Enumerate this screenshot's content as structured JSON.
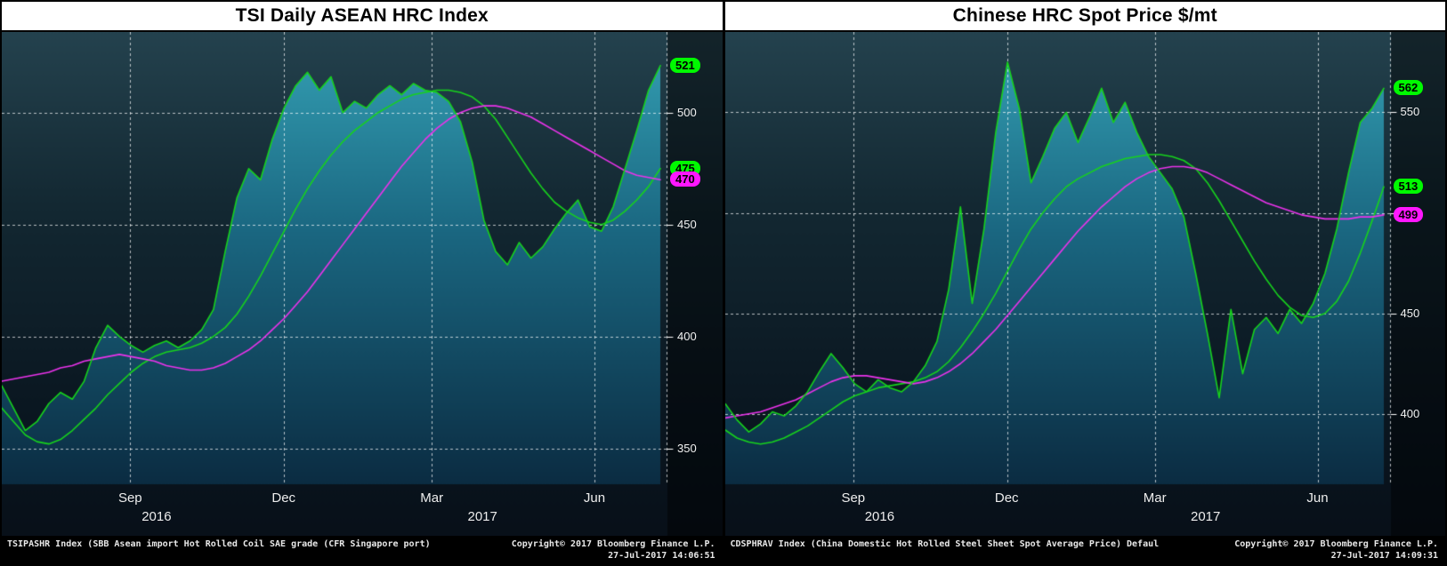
{
  "colors": {
    "header_bg": "#ffffff",
    "header_text": "#000000",
    "plot_bg_top": "#24424e",
    "plot_bg_bottom": "#081019",
    "area_top": "#35a2b6",
    "area_bottom": "#0b2c42",
    "grid": "rgba(255,255,255,0.7)",
    "price_green": "#17d21c",
    "ma_magenta": "#eb32eb",
    "badge_green": "#00f900",
    "badge_magenta": "#ff17ff"
  },
  "chart_data": [
    {
      "type": "line",
      "title": "TSI Daily ASEAN HRC Index",
      "xlabel": "",
      "ylabel": "",
      "grid": true,
      "legend": "none",
      "ylim": [
        334,
        536
      ],
      "y_ticks": [
        350,
        400,
        450,
        500
      ],
      "x_ticks": [
        {
          "label": "Sep",
          "pos": 0.195
        },
        {
          "label": "Dec",
          "pos": 0.428
        },
        {
          "label": "Mar",
          "pos": 0.653
        },
        {
          "label": "Jun",
          "pos": 0.9
        }
      ],
      "year_labels": [
        {
          "label": "2016",
          "pos": 0.235
        },
        {
          "label": "2017",
          "pos": 0.73
        }
      ],
      "series": [
        {
          "name": "price",
          "style": "area-line",
          "color": "#17d21c",
          "badge": "#00f900",
          "last": 521,
          "values": [
            378,
            368,
            358,
            362,
            370,
            375,
            372,
            380,
            395,
            405,
            400,
            396,
            393,
            396,
            398,
            395,
            398,
            403,
            412,
            438,
            462,
            475,
            470,
            488,
            502,
            512,
            518,
            510,
            516,
            500,
            505,
            502,
            508,
            512,
            508,
            513,
            510,
            509,
            505,
            496,
            478,
            452,
            438,
            432,
            442,
            435,
            440,
            448,
            455,
            461,
            449,
            447,
            458,
            475,
            492,
            510,
            521
          ]
        },
        {
          "name": "moving-average-short",
          "style": "line",
          "color": "#17d21c",
          "badge": "#00f900",
          "last": 475,
          "values": [
            368,
            362,
            356,
            353,
            352,
            354,
            358,
            363,
            368,
            374,
            379,
            384,
            388,
            391,
            393,
            394,
            395,
            397,
            400,
            404,
            410,
            418,
            427,
            437,
            447,
            457,
            466,
            474,
            481,
            487,
            492,
            496,
            500,
            503,
            506,
            508,
            509,
            510,
            510,
            509,
            507,
            503,
            497,
            489,
            481,
            473,
            466,
            460,
            456,
            453,
            451,
            450,
            452,
            456,
            461,
            467,
            475
          ]
        },
        {
          "name": "moving-average-long",
          "style": "line",
          "color": "#eb32eb",
          "badge": "#ff17ff",
          "last": 470,
          "values": [
            380,
            381,
            382,
            383,
            384,
            386,
            387,
            389,
            390,
            391,
            392,
            391,
            390,
            389,
            387,
            386,
            385,
            385,
            386,
            388,
            391,
            394,
            398,
            403,
            408,
            414,
            420,
            427,
            434,
            441,
            448,
            455,
            462,
            469,
            476,
            482,
            488,
            493,
            497,
            500,
            502,
            503,
            503,
            502,
            500,
            498,
            495,
            492,
            489,
            486,
            483,
            480,
            477,
            474,
            472,
            471,
            470
          ]
        }
      ],
      "footer_left": "TSIPASHR Index (SBB Asean import Hot Rolled Coil SAE grade (CFR Singapore port)",
      "copyright": "Copyright© 2017 Bloomberg Finance L.P.",
      "timestamp": "27-Jul-2017 14:06:51"
    },
    {
      "type": "line",
      "title": "Chinese HRC Spot Price $/mt",
      "xlabel": "",
      "ylabel": "",
      "grid": true,
      "legend": "none",
      "ylim": [
        365,
        590
      ],
      "y_ticks": [
        400,
        450,
        500,
        550
      ],
      "x_ticks": [
        {
          "label": "Sep",
          "pos": 0.195
        },
        {
          "label": "Dec",
          "pos": 0.428
        },
        {
          "label": "Mar",
          "pos": 0.653
        },
        {
          "label": "Jun",
          "pos": 0.9
        }
      ],
      "year_labels": [
        {
          "label": "2016",
          "pos": 0.235
        },
        {
          "label": "2017",
          "pos": 0.73
        }
      ],
      "series": [
        {
          "name": "price",
          "style": "area-line",
          "color": "#17d21c",
          "badge": "#00f900",
          "last": 562,
          "values": [
            405,
            397,
            391,
            395,
            401,
            399,
            404,
            411,
            421,
            430,
            423,
            415,
            411,
            417,
            413,
            411,
            416,
            424,
            436,
            462,
            503,
            455,
            492,
            540,
            575,
            552,
            515,
            528,
            542,
            550,
            535,
            548,
            562,
            545,
            555,
            540,
            528,
            520,
            512,
            498,
            470,
            440,
            408,
            452,
            420,
            442,
            448,
            440,
            452,
            445,
            455,
            470,
            492,
            520,
            545,
            552,
            562
          ]
        },
        {
          "name": "moving-average-short",
          "style": "line",
          "color": "#17d21c",
          "badge": "#00f900",
          "last": 513,
          "values": [
            392,
            388,
            386,
            385,
            386,
            388,
            391,
            394,
            398,
            402,
            406,
            409,
            411,
            413,
            414,
            415,
            416,
            418,
            421,
            426,
            433,
            441,
            450,
            460,
            471,
            482,
            492,
            500,
            507,
            513,
            517,
            520,
            523,
            525,
            527,
            528,
            529,
            529,
            528,
            526,
            522,
            515,
            506,
            496,
            486,
            476,
            467,
            459,
            453,
            449,
            448,
            450,
            456,
            466,
            480,
            496,
            513
          ]
        },
        {
          "name": "moving-average-long",
          "style": "line",
          "color": "#eb32eb",
          "badge": "#ff17ff",
          "last": 499,
          "values": [
            398,
            399,
            400,
            401,
            403,
            405,
            407,
            410,
            413,
            416,
            418,
            419,
            419,
            418,
            417,
            416,
            415,
            416,
            418,
            421,
            425,
            430,
            436,
            442,
            449,
            456,
            463,
            470,
            477,
            484,
            491,
            497,
            503,
            508,
            513,
            517,
            520,
            522,
            523,
            523,
            522,
            520,
            517,
            514,
            511,
            508,
            505,
            503,
            501,
            499,
            498,
            497,
            497,
            497,
            498,
            498,
            499
          ]
        }
      ],
      "footer_left": "CDSPHRAV Index (China Domestic Hot Rolled Steel Sheet Spot Average Price) Defaul",
      "copyright": "Copyright© 2017 Bloomberg Finance L.P.",
      "timestamp": "27-Jul-2017 14:09:31"
    }
  ]
}
